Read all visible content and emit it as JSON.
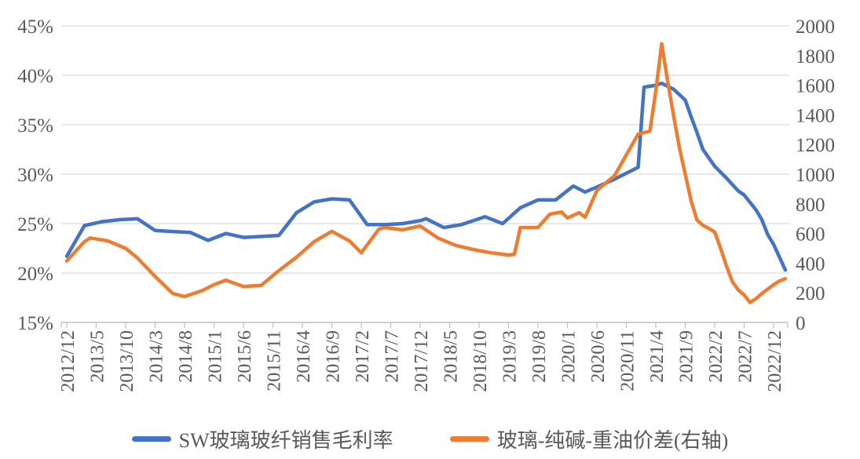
{
  "colors": {
    "background": "#FFFFFF",
    "gridline": "#D9D9D9",
    "axis_line": "#BFBFBF",
    "axis_text": "#595959",
    "series_blue": "#4472C4",
    "series_orange": "#ED7D31"
  },
  "chart_data": {
    "type": "line",
    "title": "",
    "grid": true,
    "legend_position": "bottom",
    "x_unit": "months_since_2012_12",
    "x_range_months": [
      0,
      122
    ],
    "x_tick_months": [
      0,
      5,
      10,
      15,
      20,
      25,
      30,
      35,
      40,
      45,
      50,
      55,
      60,
      65,
      70,
      75,
      80,
      85,
      90,
      95,
      100,
      105,
      110,
      115,
      120
    ],
    "x_tick_labels": [
      "2012/12",
      "2013/5",
      "2013/10",
      "2014/3",
      "2014/8",
      "2015/1",
      "2015/6",
      "2015/11",
      "2016/4",
      "2016/9",
      "2017/2",
      "2017/7",
      "2017/12",
      "2018/5",
      "2018/10",
      "2019/3",
      "2019/8",
      "2020/1",
      "2020/6",
      "2020/11",
      "2021/4",
      "2021/9",
      "2022/2",
      "2022/7",
      "2022/12"
    ],
    "left_axis": {
      "min": 15,
      "max": 45,
      "tick_values": [
        45,
        40,
        35,
        30,
        25,
        20,
        15
      ],
      "tick_labels": [
        "45%",
        "40%",
        "35%",
        "30%",
        "25%",
        "20%",
        "15%"
      ]
    },
    "right_axis": {
      "min": 0,
      "max": 2000,
      "tick_values": [
        2000,
        1800,
        1600,
        1400,
        1200,
        1000,
        800,
        600,
        400,
        200,
        0
      ],
      "tick_labels": [
        "2000",
        "1800",
        "1600",
        "1400",
        "1200",
        "1000",
        "800",
        "600",
        "400",
        "200",
        "0"
      ]
    },
    "series": [
      {
        "name": "SW玻璃玻纤销售毛利率",
        "axis": "left",
        "color": "#4472C4",
        "points": [
          [
            0,
            21.7
          ],
          [
            3,
            24.8
          ],
          [
            6,
            25.2
          ],
          [
            9,
            25.4
          ],
          [
            12,
            25.5
          ],
          [
            15,
            24.3
          ],
          [
            18,
            24.2
          ],
          [
            21,
            24.1
          ],
          [
            24,
            23.3
          ],
          [
            27,
            24.0
          ],
          [
            30,
            23.6
          ],
          [
            33,
            23.7
          ],
          [
            36,
            23.8
          ],
          [
            39,
            26.1
          ],
          [
            42,
            27.2
          ],
          [
            45,
            27.5
          ],
          [
            48,
            27.4
          ],
          [
            51,
            24.9
          ],
          [
            54,
            24.9
          ],
          [
            57,
            25.0
          ],
          [
            60,
            25.3
          ],
          [
            61,
            25.5
          ],
          [
            64,
            24.6
          ],
          [
            67,
            24.9
          ],
          [
            70,
            25.5
          ],
          [
            71,
            25.7
          ],
          [
            74,
            25.0
          ],
          [
            77,
            26.6
          ],
          [
            80,
            27.4
          ],
          [
            83,
            27.4
          ],
          [
            86,
            28.8
          ],
          [
            88,
            28.2
          ],
          [
            90,
            28.7
          ],
          [
            93,
            29.5
          ],
          [
            95,
            30.1
          ],
          [
            97,
            30.7
          ],
          [
            98,
            38.8
          ],
          [
            100,
            39.0
          ],
          [
            101,
            39.2
          ],
          [
            103,
            38.6
          ],
          [
            105,
            37.5
          ],
          [
            106,
            35.8
          ],
          [
            107,
            34.2
          ],
          [
            108,
            32.5
          ],
          [
            110,
            30.8
          ],
          [
            112,
            29.6
          ],
          [
            114,
            28.3
          ],
          [
            115,
            27.9
          ],
          [
            117,
            26.4
          ],
          [
            118,
            25.4
          ],
          [
            119,
            23.9
          ],
          [
            120,
            22.9
          ],
          [
            121,
            21.6
          ],
          [
            122,
            20.3
          ]
        ]
      },
      {
        "name": "玻璃-纯碱-重油价差(右轴)",
        "axis": "right",
        "color": "#ED7D31",
        "points": [
          [
            0,
            415
          ],
          [
            3,
            545
          ],
          [
            4,
            570
          ],
          [
            7,
            550
          ],
          [
            10,
            500
          ],
          [
            12,
            435
          ],
          [
            15,
            310
          ],
          [
            18,
            195
          ],
          [
            20,
            175
          ],
          [
            23,
            215
          ],
          [
            25,
            255
          ],
          [
            27,
            285
          ],
          [
            30,
            243
          ],
          [
            33,
            250
          ],
          [
            36,
            350
          ],
          [
            39,
            440
          ],
          [
            42,
            545
          ],
          [
            45,
            615
          ],
          [
            48,
            550
          ],
          [
            50,
            470
          ],
          [
            53,
            630
          ],
          [
            54,
            640
          ],
          [
            57,
            625
          ],
          [
            60,
            650
          ],
          [
            63,
            570
          ],
          [
            66,
            520
          ],
          [
            69,
            492
          ],
          [
            72,
            470
          ],
          [
            75,
            455
          ],
          [
            76,
            460
          ],
          [
            77,
            640
          ],
          [
            80,
            640
          ],
          [
            82,
            730
          ],
          [
            84,
            745
          ],
          [
            85,
            705
          ],
          [
            87,
            740
          ],
          [
            88,
            710
          ],
          [
            90,
            890
          ],
          [
            93,
            990
          ],
          [
            95,
            1130
          ],
          [
            97,
            1270
          ],
          [
            99,
            1290
          ],
          [
            100,
            1560
          ],
          [
            101,
            1880
          ],
          [
            102,
            1630
          ],
          [
            103,
            1400
          ],
          [
            104,
            1180
          ],
          [
            105,
            1000
          ],
          [
            106,
            820
          ],
          [
            107,
            690
          ],
          [
            108,
            655
          ],
          [
            109,
            635
          ],
          [
            110,
            610
          ],
          [
            111,
            500
          ],
          [
            112,
            380
          ],
          [
            113,
            275
          ],
          [
            114,
            220
          ],
          [
            115,
            185
          ],
          [
            116,
            135
          ],
          [
            117,
            160
          ],
          [
            118,
            195
          ],
          [
            119,
            225
          ],
          [
            120,
            255
          ],
          [
            121,
            280
          ],
          [
            122,
            295
          ]
        ]
      }
    ]
  }
}
